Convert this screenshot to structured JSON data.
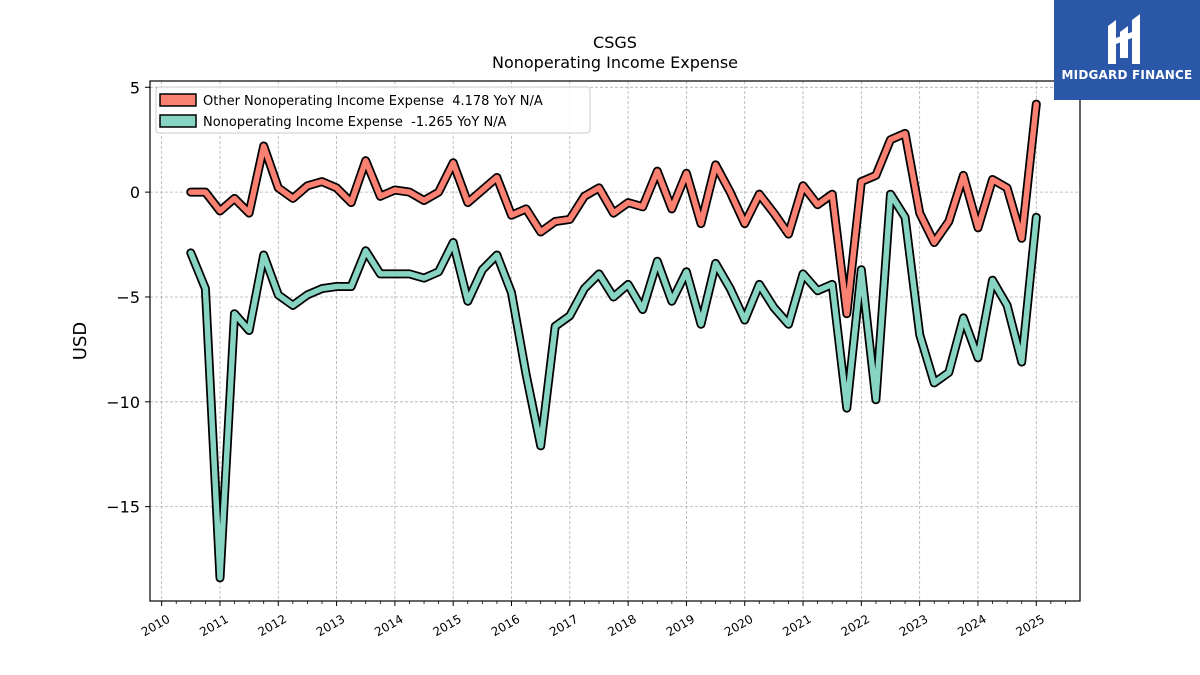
{
  "chart_data": {
    "type": "line",
    "title": "CSGS",
    "subtitle": "Nonoperating Income Expense",
    "xlabel": "",
    "ylabel": "USD",
    "x_ticks": [
      "2010",
      "2011",
      "2012",
      "2013",
      "2014",
      "2015",
      "2016",
      "2017",
      "2018",
      "2019",
      "2020",
      "2021",
      "2022",
      "2023",
      "2024",
      "2025"
    ],
    "y_ticks": [
      5,
      0,
      -5,
      -10,
      -15
    ],
    "y_tick_labels": [
      "5",
      "0",
      "−5",
      "−10",
      "−15"
    ],
    "xlim": [
      2009.8,
      2025.75
    ],
    "ylim": [
      -19.5,
      5.3
    ],
    "grid": true,
    "legend_position": "top-left",
    "x": [
      2010.5,
      2010.75,
      2011.0,
      2011.25,
      2011.5,
      2011.75,
      2012.0,
      2012.25,
      2012.5,
      2012.75,
      2013.0,
      2013.25,
      2013.5,
      2013.75,
      2014.0,
      2014.25,
      2014.5,
      2014.75,
      2015.0,
      2015.25,
      2015.5,
      2015.75,
      2016.0,
      2016.25,
      2016.5,
      2016.75,
      2017.0,
      2017.25,
      2017.5,
      2017.75,
      2018.0,
      2018.25,
      2018.5,
      2018.75,
      2019.0,
      2019.25,
      2019.5,
      2019.75,
      2020.0,
      2020.25,
      2020.5,
      2020.75,
      2021.0,
      2021.25,
      2021.5,
      2021.75,
      2022.0,
      2022.25,
      2022.5,
      2022.75,
      2023.0,
      2023.25,
      2023.5,
      2023.75,
      2024.0,
      2024.25,
      2024.5,
      2024.75,
      2025.0
    ],
    "series": [
      {
        "name": "Other Nonoperating Income Expense  4.178 YoY N/A",
        "color": "#fa8072",
        "values": [
          0.0,
          0.0,
          -0.9,
          -0.3,
          -1.0,
          2.2,
          0.2,
          -0.3,
          0.3,
          0.5,
          0.2,
          -0.5,
          1.5,
          -0.2,
          0.1,
          0.0,
          -0.4,
          0.0,
          1.4,
          -0.5,
          0.1,
          0.7,
          -1.1,
          -0.8,
          -1.9,
          -1.4,
          -1.3,
          -0.2,
          0.2,
          -1.0,
          -0.5,
          -0.7,
          1.0,
          -0.8,
          0.9,
          -1.5,
          1.3,
          0.0,
          -1.5,
          -0.1,
          -1.0,
          -2.0,
          0.3,
          -0.6,
          -0.1,
          -5.8,
          0.5,
          0.8,
          2.5,
          2.8,
          -1.0,
          -2.4,
          -1.4,
          0.8,
          -1.7,
          0.6,
          0.2,
          -2.2,
          4.2
        ]
      },
      {
        "name": "Nonoperating Income Expense  -1.265 YoY N/A",
        "color": "#88d4c3",
        "values": [
          -2.9,
          -4.6,
          -18.4,
          -5.8,
          -6.6,
          -3.0,
          -4.9,
          -5.4,
          -4.9,
          -4.6,
          -4.5,
          -4.5,
          -2.8,
          -3.9,
          -3.9,
          -3.9,
          -4.1,
          -3.8,
          -2.4,
          -5.2,
          -3.7,
          -3.0,
          -4.8,
          -8.7,
          -12.1,
          -6.4,
          -5.9,
          -4.6,
          -3.9,
          -5.0,
          -4.4,
          -5.6,
          -3.3,
          -5.2,
          -3.8,
          -6.3,
          -3.4,
          -4.6,
          -6.1,
          -4.4,
          -5.5,
          -6.3,
          -3.9,
          -4.7,
          -4.4,
          -10.3,
          -3.7,
          -9.9,
          -0.1,
          -1.2,
          -6.8,
          -9.1,
          -8.6,
          -6.0,
          -7.9,
          -4.2,
          -5.4,
          -8.1,
          -1.2
        ]
      }
    ]
  },
  "logo": {
    "text": "MIDGARD FINANCE"
  }
}
